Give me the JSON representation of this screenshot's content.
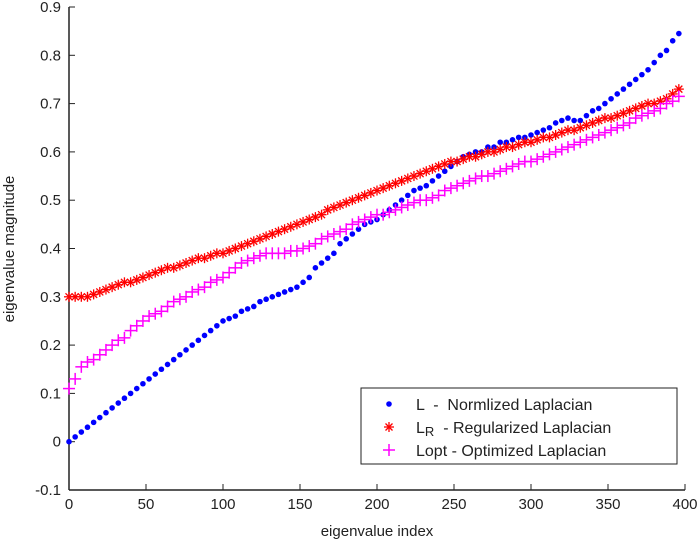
{
  "chart_data": {
    "type": "scatter",
    "title": "",
    "xlabel": "eigenvalue index",
    "ylabel": "eigenvalue magnitude",
    "xlim": [
      0,
      400
    ],
    "ylim": [
      -0.1,
      0.9
    ],
    "xticks": [
      "0",
      "50",
      "100",
      "150",
      "200",
      "250",
      "300",
      "350",
      "400"
    ],
    "yticks": [
      "-0.1",
      "0",
      "0.1",
      "0.2",
      "0.3",
      "0.4",
      "0.5",
      "0.6",
      "0.7",
      "0.8",
      "0.9"
    ],
    "grid": false,
    "legend_position": "bottom-right",
    "x_start": 0,
    "x_step": 4,
    "series": [
      {
        "name": "L  -  Normlized Laplacian",
        "label_main": "L",
        "label_sub": "",
        "label_rest": "  -  Normlized Laplacian",
        "color": "#0000ff",
        "marker": "dot",
        "values": [
          0,
          0.01,
          0.02,
          0.03,
          0.04,
          0.05,
          0.06,
          0.07,
          0.08,
          0.09,
          0.1,
          0.11,
          0.12,
          0.13,
          0.14,
          0.15,
          0.16,
          0.17,
          0.18,
          0.19,
          0.2,
          0.21,
          0.22,
          0.23,
          0.24,
          0.25,
          0.255,
          0.26,
          0.27,
          0.275,
          0.28,
          0.29,
          0.295,
          0.3,
          0.305,
          0.31,
          0.315,
          0.32,
          0.33,
          0.34,
          0.36,
          0.37,
          0.38,
          0.39,
          0.41,
          0.42,
          0.43,
          0.44,
          0.45,
          0.455,
          0.46,
          0.47,
          0.48,
          0.49,
          0.5,
          0.51,
          0.52,
          0.525,
          0.53,
          0.54,
          0.55,
          0.56,
          0.57,
          0.58,
          0.59,
          0.595,
          0.6,
          0.6,
          0.61,
          0.61,
          0.62,
          0.62,
          0.625,
          0.63,
          0.63,
          0.635,
          0.64,
          0.645,
          0.65,
          0.66,
          0.665,
          0.67,
          0.665,
          0.665,
          0.675,
          0.685,
          0.69,
          0.7,
          0.71,
          0.72,
          0.73,
          0.74,
          0.75,
          0.76,
          0.77,
          0.785,
          0.8,
          0.81,
          0.83,
          0.845
        ]
      },
      {
        "name": "LR - Regularized Laplacian",
        "label_main": "L",
        "label_sub": "R",
        "label_rest": "  - Regularized Laplacian",
        "color": "#ff0000",
        "marker": "asterisk",
        "values": [
          0.3,
          0.3,
          0.3,
          0.3,
          0.305,
          0.31,
          0.315,
          0.32,
          0.325,
          0.33,
          0.33,
          0.335,
          0.34,
          0.345,
          0.35,
          0.355,
          0.36,
          0.36,
          0.365,
          0.37,
          0.375,
          0.38,
          0.38,
          0.385,
          0.39,
          0.39,
          0.395,
          0.4,
          0.405,
          0.41,
          0.415,
          0.42,
          0.425,
          0.43,
          0.435,
          0.44,
          0.445,
          0.45,
          0.455,
          0.46,
          0.465,
          0.47,
          0.48,
          0.485,
          0.49,
          0.495,
          0.5,
          0.505,
          0.51,
          0.515,
          0.52,
          0.525,
          0.53,
          0.535,
          0.54,
          0.545,
          0.55,
          0.555,
          0.56,
          0.565,
          0.57,
          0.575,
          0.58,
          0.58,
          0.585,
          0.59,
          0.59,
          0.595,
          0.6,
          0.6,
          0.605,
          0.61,
          0.61,
          0.615,
          0.62,
          0.62,
          0.625,
          0.63,
          0.63,
          0.635,
          0.64,
          0.645,
          0.645,
          0.65,
          0.655,
          0.66,
          0.665,
          0.67,
          0.67,
          0.675,
          0.68,
          0.685,
          0.69,
          0.695,
          0.7,
          0.7,
          0.705,
          0.71,
          0.72,
          0.73
        ]
      },
      {
        "name": "Lopt - Optimized Laplacian",
        "label_main": "Lopt",
        "label_sub": "",
        "label_rest": " - Optimized Laplacian",
        "color": "#ff00ff",
        "marker": "plus",
        "values": [
          0.11,
          0.13,
          0.155,
          0.165,
          0.17,
          0.18,
          0.19,
          0.2,
          0.21,
          0.215,
          0.23,
          0.24,
          0.25,
          0.26,
          0.265,
          0.27,
          0.28,
          0.29,
          0.295,
          0.3,
          0.31,
          0.315,
          0.32,
          0.33,
          0.335,
          0.34,
          0.35,
          0.36,
          0.37,
          0.375,
          0.38,
          0.385,
          0.39,
          0.39,
          0.39,
          0.39,
          0.395,
          0.395,
          0.4,
          0.405,
          0.41,
          0.42,
          0.425,
          0.43,
          0.435,
          0.44,
          0.45,
          0.455,
          0.46,
          0.465,
          0.47,
          0.47,
          0.475,
          0.48,
          0.485,
          0.49,
          0.495,
          0.5,
          0.5,
          0.505,
          0.51,
          0.52,
          0.525,
          0.53,
          0.535,
          0.54,
          0.545,
          0.55,
          0.55,
          0.555,
          0.56,
          0.565,
          0.57,
          0.575,
          0.58,
          0.58,
          0.585,
          0.59,
          0.595,
          0.6,
          0.605,
          0.61,
          0.615,
          0.62,
          0.625,
          0.63,
          0.635,
          0.64,
          0.645,
          0.65,
          0.655,
          0.66,
          0.67,
          0.675,
          0.68,
          0.685,
          0.69,
          0.7,
          0.705,
          0.715
        ]
      }
    ]
  }
}
